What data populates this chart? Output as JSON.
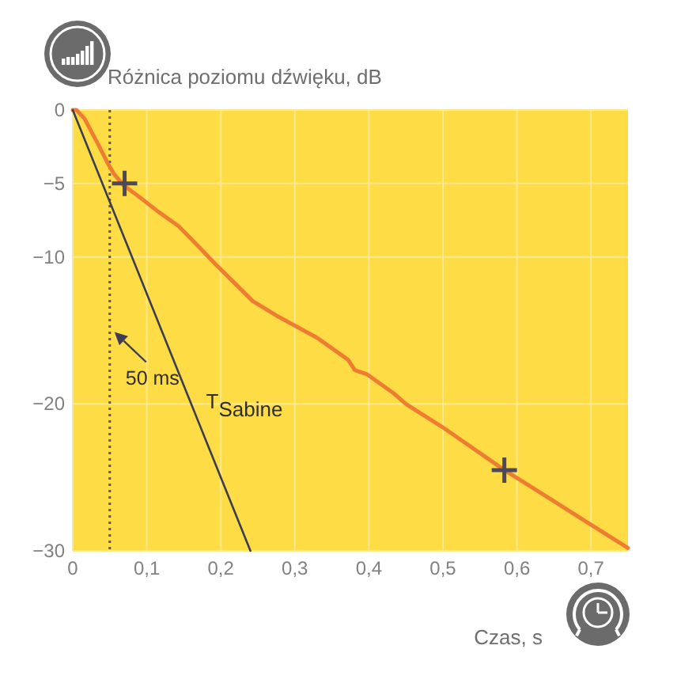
{
  "chart_data": {
    "type": "line",
    "ylabel": "Różnica poziomu dźwięku, dB",
    "xlabel": "Czas, s",
    "xlim": [
      0,
      0.75
    ],
    "ylim": [
      -30,
      0
    ],
    "xticks": [
      0,
      {
        "value": 0.1,
        "label": "0,1"
      },
      {
        "value": 0.2,
        "label": "0,2"
      },
      {
        "value": 0.3,
        "label": "0,3"
      },
      {
        "value": 0.4,
        "label": "0,4"
      },
      {
        "value": 0.5,
        "label": "0,5"
      },
      {
        "value": 0.6,
        "label": "0,6"
      },
      {
        "value": 0.7,
        "label": "0,7"
      }
    ],
    "yticks": [
      0,
      {
        "value": -5,
        "label": "−5"
      },
      {
        "value": -10,
        "label": "−10"
      },
      {
        "value": -20,
        "label": "−20"
      },
      {
        "value": -30,
        "label": "−30"
      }
    ],
    "grid": true,
    "series": [
      {
        "color": "#ee7d31",
        "x": [
          0,
          0.005,
          0.016,
          0.036,
          0.047,
          0.055,
          0.068,
          0.087,
          0.115,
          0.143,
          0.172,
          0.193,
          0.215,
          0.243,
          0.279,
          0.33,
          0.372,
          0.381,
          0.398,
          0.434,
          0.45,
          0.5,
          0.583,
          0.64,
          0.696,
          0.75
        ],
        "values": [
          0,
          0,
          -0.6,
          -2.5,
          -3.6,
          -4.3,
          -5.1,
          -5.8,
          -6.9,
          -7.9,
          -9.4,
          -10.5,
          -11.6,
          -13,
          -14.1,
          -15.5,
          -17,
          -17.7,
          -18,
          -19.3,
          -20,
          -21.6,
          -24.5,
          -26.3,
          -28.1,
          -29.8
        ]
      },
      {
        "name": "T$_{Sabine}$",
        "color": "#3d3d52",
        "x": [
          0,
          0.24
        ],
        "values": [
          0,
          -30
        ]
      },
      {
        "type": "scatter",
        "marker": "cross",
        "color": "#4a4a5c",
        "x": [
          0.07,
          0.583
        ],
        "values": [
          -5,
          -24.5
        ]
      }
    ],
    "ref_lines": [
      {
        "axis": "x",
        "value": 0.05,
        "line_style": "dotted",
        "color": "#55557a"
      }
    ],
    "annotations": [
      {
        "text": "50 ms",
        "x": 0.05,
        "y": -15
      }
    ]
  }
}
